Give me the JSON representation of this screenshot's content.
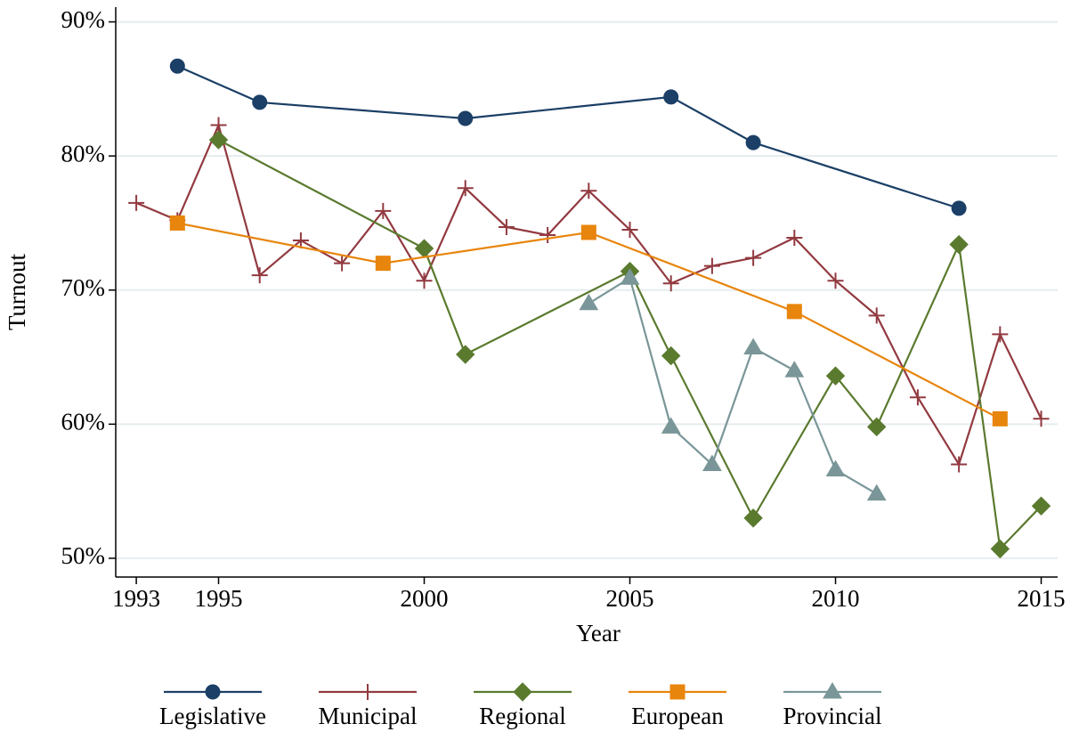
{
  "chart_data": {
    "type": "line",
    "x_label": "Year",
    "y_label": "Turnout",
    "xlim": [
      1992.5,
      2015.4
    ],
    "ylim": [
      48.6,
      91.1
    ],
    "xticks": [
      1993,
      1995,
      2000,
      2005,
      2010,
      2015
    ],
    "yticks": [
      {
        "value": 50,
        "label": "50%"
      },
      {
        "value": 60,
        "label": "60%"
      },
      {
        "value": 70,
        "label": "70%"
      },
      {
        "value": 80,
        "label": "80%"
      },
      {
        "value": 90,
        "label": "90%"
      }
    ],
    "grid": true,
    "legend": "bottom",
    "series": [
      {
        "name": "Legislative",
        "color": "#1b3f66",
        "marker": "circle",
        "x": [
          1994,
          1996,
          2001,
          2006,
          2008,
          2013
        ],
        "values": [
          86.7,
          84.0,
          82.8,
          84.4,
          81.0,
          76.1
        ]
      },
      {
        "name": "Municipal",
        "color": "#923a40",
        "marker": "plus",
        "x": [
          1993,
          1994,
          1995,
          1996,
          1997,
          1998,
          1999,
          2000,
          2001,
          2002,
          2003,
          2004,
          2005,
          2006,
          2007,
          2008,
          2009,
          2010,
          2011,
          2012,
          2013,
          2014,
          2015
        ],
        "values": [
          76.5,
          75.2,
          82.3,
          71.1,
          73.7,
          72.0,
          75.9,
          70.7,
          77.6,
          74.7,
          74.1,
          77.4,
          74.5,
          70.5,
          71.8,
          72.4,
          73.9,
          70.7,
          68.1,
          62.0,
          57.0,
          66.7,
          60.4
        ]
      },
      {
        "name": "Regional",
        "color": "#5a7a2e",
        "marker": "diamond",
        "x": [
          1995,
          2000,
          2001,
          2005,
          2006,
          2008,
          2010,
          2011,
          2013,
          2014,
          2015
        ],
        "values": [
          81.2,
          73.1,
          65.2,
          71.4,
          65.1,
          53.0,
          63.6,
          59.8,
          73.4,
          50.7,
          53.9
        ]
      },
      {
        "name": "European",
        "color": "#e8850c",
        "marker": "square",
        "x": [
          1994,
          1999,
          2004,
          2009,
          2014
        ],
        "values": [
          75.0,
          72.0,
          74.3,
          68.4,
          60.4
        ]
      },
      {
        "name": "Provincial",
        "color": "#7a9698",
        "marker": "triangle",
        "x": [
          2004,
          2005,
          2006,
          2007,
          2008,
          2009,
          2010,
          2011
        ],
        "values": [
          69.0,
          70.9,
          59.8,
          57.0,
          65.7,
          64.0,
          56.6,
          54.8
        ]
      }
    ]
  }
}
